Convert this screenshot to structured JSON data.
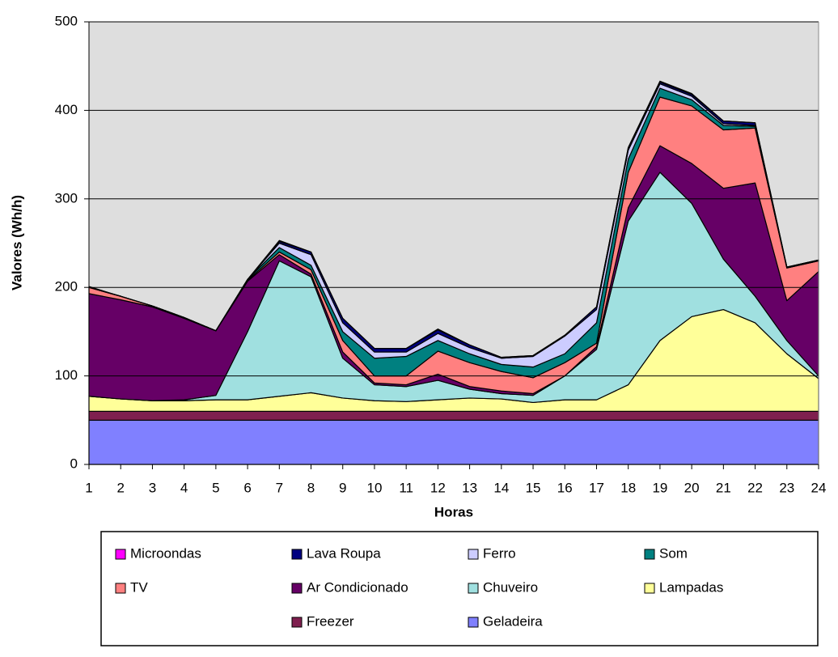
{
  "chart_data": {
    "type": "stacked-area",
    "y_label": "Valores (Wh/h)",
    "x_label": "Horas",
    "x": [
      1,
      2,
      3,
      4,
      5,
      6,
      7,
      8,
      9,
      10,
      11,
      12,
      13,
      14,
      15,
      16,
      17,
      18,
      19,
      20,
      21,
      22,
      23,
      24
    ],
    "xlim": [
      1,
      24
    ],
    "xticks": [
      1,
      2,
      3,
      4,
      5,
      6,
      7,
      8,
      9,
      10,
      11,
      12,
      13,
      14,
      15,
      16,
      17,
      18,
      19,
      20,
      21,
      22,
      23,
      24
    ],
    "ylim": [
      0,
      500
    ],
    "yticks": [
      0,
      100,
      200,
      300,
      400,
      500
    ],
    "grid": true,
    "series": [
      {
        "name": "Geladeira",
        "color": "#8080ff",
        "values": [
          50,
          50,
          50,
          50,
          50,
          50,
          50,
          50,
          50,
          50,
          50,
          50,
          50,
          50,
          50,
          50,
          50,
          50,
          50,
          50,
          50,
          50,
          50,
          50
        ]
      },
      {
        "name": "Freezer",
        "color": "#7f1f4f",
        "values": [
          10,
          10,
          10,
          10,
          10,
          10,
          10,
          10,
          10,
          10,
          10,
          10,
          10,
          10,
          10,
          10,
          10,
          10,
          10,
          10,
          10,
          10,
          10,
          10
        ]
      },
      {
        "name": "Lampadas",
        "color": "#ffff99",
        "values": [
          17,
          14,
          12,
          12,
          13,
          13,
          17,
          21,
          15,
          12,
          11,
          13,
          15,
          14,
          10,
          13,
          13,
          30,
          80,
          107,
          115,
          100,
          65,
          37
        ]
      },
      {
        "name": "Chuveiro",
        "color": "#a0e0e0",
        "values": [
          0,
          0,
          0,
          1,
          5,
          77,
          153,
          131,
          45,
          18,
          17,
          22,
          10,
          6,
          8,
          27,
          57,
          185,
          190,
          128,
          57,
          30,
          15,
          3
        ]
      },
      {
        "name": "Ar Condicionado",
        "color": "#660066",
        "values": [
          116,
          112,
          106,
          92,
          73,
          57,
          7,
          3,
          7,
          2,
          2,
          7,
          3,
          3,
          2,
          0,
          3,
          15,
          30,
          45,
          80,
          128,
          45,
          118
        ]
      },
      {
        "name": "TV",
        "color": "#ff8080",
        "values": [
          7,
          4,
          1,
          1,
          0,
          1,
          3,
          5,
          13,
          8,
          10,
          26,
          27,
          22,
          18,
          15,
          4,
          40,
          55,
          65,
          66,
          62,
          37,
          12
        ]
      },
      {
        "name": "Som",
        "color": "#008080",
        "values": [
          0,
          0,
          0,
          0,
          0,
          1,
          5,
          5,
          10,
          20,
          22,
          12,
          10,
          8,
          12,
          10,
          23,
          15,
          10,
          7,
          5,
          2,
          0,
          0
        ]
      },
      {
        "name": "Ferro",
        "color": "#ccccff",
        "values": [
          0,
          0,
          0,
          0,
          0,
          0,
          5,
          12,
          10,
          7,
          5,
          8,
          7,
          7,
          12,
          20,
          15,
          10,
          5,
          4,
          2,
          1,
          1,
          1
        ]
      },
      {
        "name": "Lava Roupa",
        "color": "#000080",
        "values": [
          0,
          0,
          0,
          0,
          0,
          0,
          2,
          3,
          5,
          4,
          4,
          4,
          3,
          1,
          1,
          1,
          3,
          3,
          2,
          2,
          3,
          3,
          0,
          0
        ]
      },
      {
        "name": "Microondas",
        "color": "#ff00ff",
        "values": [
          1,
          0,
          0,
          0,
          0,
          0,
          1,
          0,
          0,
          0,
          0,
          1,
          0,
          0,
          0,
          0,
          0,
          0,
          1,
          1,
          0,
          0,
          0,
          0
        ]
      }
    ]
  }
}
